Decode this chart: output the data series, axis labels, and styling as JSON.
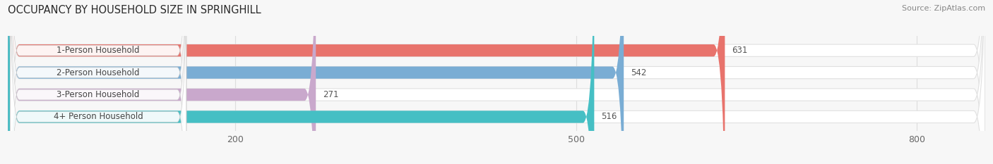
{
  "title": "OCCUPANCY BY HOUSEHOLD SIZE IN SPRINGHILL",
  "source": "Source: ZipAtlas.com",
  "categories": [
    "1-Person Household",
    "2-Person Household",
    "3-Person Household",
    "4+ Person Household"
  ],
  "values": [
    631,
    542,
    271,
    516
  ],
  "bar_colors": [
    "#E8736C",
    "#7AADD4",
    "#C9A8CC",
    "#45BFC4"
  ],
  "xlim_max": 860,
  "xticks": [
    200,
    500,
    800
  ],
  "bar_height": 0.55,
  "background_color": "#f7f7f7",
  "bar_bg_color": "#ffffff",
  "bar_bg_edge_color": "#e0e0e0",
  "title_fontsize": 10.5,
  "source_fontsize": 8,
  "tick_fontsize": 9,
  "cat_fontsize": 8.5,
  "val_fontsize": 8.5
}
